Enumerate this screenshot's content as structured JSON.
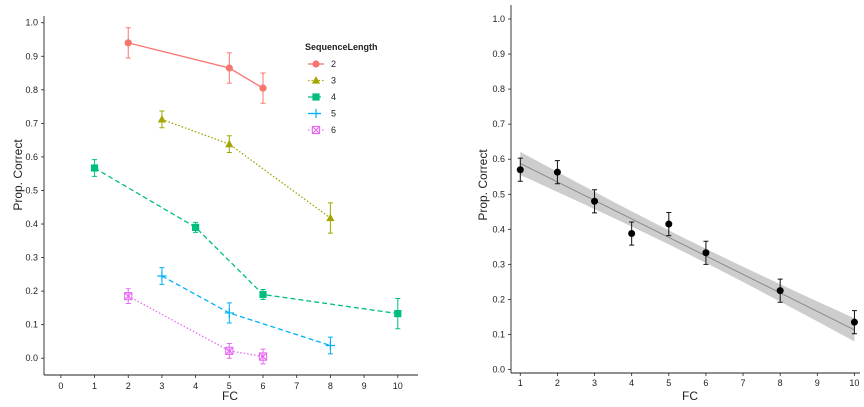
{
  "chart_data": [
    {
      "type": "line",
      "xlabel": "FC",
      "ylabel": "Prop. Correct",
      "xlim": [
        -0.5,
        10.6
      ],
      "ylim": [
        -0.05,
        1.02
      ],
      "xticks": [
        0,
        1,
        2,
        3,
        4,
        5,
        6,
        7,
        8,
        9,
        10
      ],
      "yticks": [
        0.0,
        0.1,
        0.2,
        0.3,
        0.4,
        0.5,
        0.6,
        0.7,
        0.8,
        0.9,
        1.0
      ],
      "ytick_labels": [
        "0.0",
        "0.1",
        "0.2",
        "0.3",
        "0.4",
        "0.5",
        "0.6",
        "0.7",
        "0.8",
        "0.9",
        "1.0"
      ],
      "grid": false,
      "legend": {
        "title": "SequenceLength",
        "position": "top-right"
      },
      "series": [
        {
          "name": "2",
          "color": "#F8766D",
          "marker": "circle",
          "dash": "solid",
          "x": [
            2,
            5,
            6
          ],
          "y": [
            0.94,
            0.865,
            0.805
          ],
          "err": [
            0.045,
            0.045,
            0.045
          ]
        },
        {
          "name": "3",
          "color": "#A3A500",
          "marker": "triangle",
          "dash": "dotted",
          "x": [
            3,
            5,
            8
          ],
          "y": [
            0.712,
            0.638,
            0.418
          ],
          "err": [
            0.025,
            0.025,
            0.045
          ]
        },
        {
          "name": "4",
          "color": "#00BF7D",
          "marker": "square",
          "dash": "dashed",
          "x": [
            1,
            4,
            6,
            10
          ],
          "y": [
            0.567,
            0.39,
            0.19,
            0.133
          ],
          "err": [
            0.025,
            0.015,
            0.015,
            0.045
          ]
        },
        {
          "name": "5",
          "color": "#00B0F6",
          "marker": "plus",
          "dash": "dashed",
          "x": [
            3,
            5,
            8
          ],
          "y": [
            0.245,
            0.135,
            0.038
          ],
          "err": [
            0.025,
            0.03,
            0.025
          ]
        },
        {
          "name": "6",
          "color": "#E76BF3",
          "marker": "boxtimes",
          "dash": "dotted",
          "x": [
            2,
            5,
            6
          ],
          "y": [
            0.185,
            0.022,
            0.005
          ],
          "err": [
            0.022,
            0.022,
            0.022
          ]
        }
      ]
    },
    {
      "type": "scatter",
      "xlabel": "FC",
      "ylabel": "Prop. Correct",
      "xlim": [
        0.75,
        10.15
      ],
      "ylim": [
        -0.01,
        1.04
      ],
      "xticks": [
        1,
        2,
        3,
        4,
        5,
        6,
        7,
        8,
        9,
        10
      ],
      "yticks": [
        0.0,
        0.1,
        0.2,
        0.3,
        0.4,
        0.5,
        0.6,
        0.7,
        0.8,
        0.9,
        1.0
      ],
      "ytick_labels": [
        "0.0",
        "0.1",
        "0.2",
        "0.3",
        "0.4",
        "0.5",
        "0.6",
        "0.7",
        "0.8",
        "0.9",
        "1.0"
      ],
      "grid": false,
      "points": {
        "x": [
          1,
          2,
          3,
          4,
          5,
          6,
          8,
          10
        ],
        "y": [
          0.57,
          0.563,
          0.48,
          0.388,
          0.415,
          0.333,
          0.225,
          0.135
        ],
        "err": [
          0.033,
          0.033,
          0.033,
          0.033,
          0.033,
          0.033,
          0.033,
          0.033
        ]
      },
      "fit": {
        "x": [
          1,
          10
        ],
        "y": [
          0.588,
          0.113
        ],
        "band_halfwidth_at_ends": [
          0.033,
          0.033
        ],
        "band_halfwidth_at_center": 0.02
      }
    }
  ]
}
